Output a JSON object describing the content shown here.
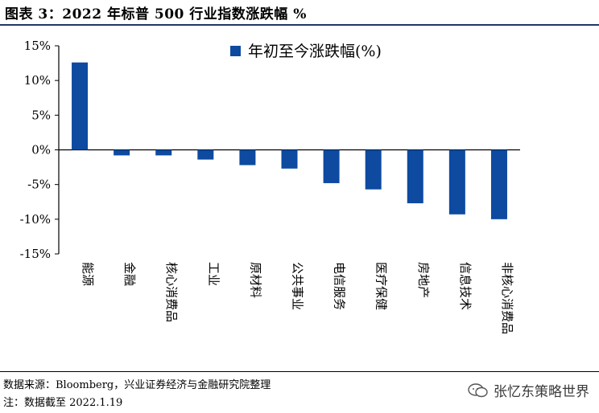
{
  "figure": {
    "title": "图表 3：2022 年标普 500 行业指数涨跌幅 %",
    "source": "数据来源：Bloomberg，兴业证券经济与金融研究院整理",
    "note": "注：数据截至 2022.1.19",
    "watermark": "张忆东策略世界"
  },
  "colors": {
    "bar": "#0d4aa0",
    "axis": "#000000",
    "rule": "#1f3864"
  },
  "chart_data": {
    "type": "bar",
    "categories": [
      "能源",
      "金融",
      "核心消费品",
      "工业",
      "原材料",
      "公共事业",
      "电信服务",
      "医疗保健",
      "房地产",
      "信息技术",
      "非核心消费品"
    ],
    "series": [
      {
        "name": "年初至今涨跌幅(%)",
        "values": [
          12.6,
          -0.8,
          -0.8,
          -1.4,
          -2.2,
          -2.7,
          -4.8,
          -5.7,
          -7.7,
          -9.3,
          -10.0
        ]
      }
    ],
    "ylim": [
      -15,
      15
    ],
    "yticks": [
      15,
      10,
      5,
      0,
      -5,
      -10,
      -15
    ],
    "ytick_labels": [
      "15%",
      "10%",
      "5%",
      "0%",
      "-5%",
      "-10%",
      "-15%"
    ],
    "legend_position": "top-center",
    "grid": false
  }
}
